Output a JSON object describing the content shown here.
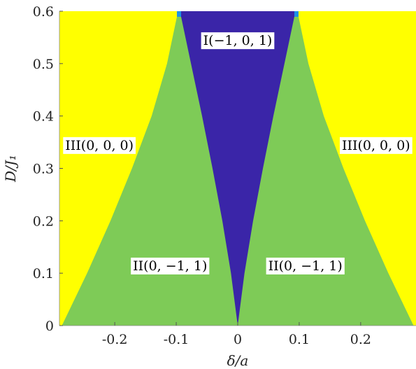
{
  "chart_data": {
    "type": "heatmap",
    "xlabel": "δ/a",
    "ylabel": "D/J₁",
    "xlim": [
      -0.29,
      0.29
    ],
    "ylim": [
      0,
      0.6
    ],
    "x_ticks": [
      {
        "value": -0.2,
        "label": "-0.2"
      },
      {
        "value": -0.1,
        "label": "-0.1"
      },
      {
        "value": 0,
        "label": "0"
      },
      {
        "value": 0.1,
        "label": "0.1"
      },
      {
        "value": 0.2,
        "label": "0.2"
      }
    ],
    "y_ticks": [
      {
        "value": 0,
        "label": "0"
      },
      {
        "value": 0.1,
        "label": "0.1"
      },
      {
        "value": 0.2,
        "label": "0.2"
      },
      {
        "value": 0.3,
        "label": "0.3"
      },
      {
        "value": 0.4,
        "label": "0.4"
      },
      {
        "value": 0.5,
        "label": "0.5"
      },
      {
        "value": 0.6,
        "label": "0.6"
      }
    ],
    "regions": [
      {
        "name": "III",
        "label": "III(0, 0, 0)",
        "color": "#ffff00"
      },
      {
        "name": "II",
        "label": "II(0, −1, 1)",
        "color": "#7ecb57"
      },
      {
        "name": "I",
        "label": "I(−1, 0, 1)",
        "color": "#3a25a8"
      }
    ],
    "boundaries": {
      "I_II": [
        {
          "D": 0.0,
          "delta": 0.0
        },
        {
          "D": 0.1,
          "delta": 0.011
        },
        {
          "D": 0.2,
          "delta": 0.025
        },
        {
          "D": 0.3,
          "delta": 0.041
        },
        {
          "D": 0.4,
          "delta": 0.058
        },
        {
          "D": 0.5,
          "delta": 0.076
        },
        {
          "D": 0.6,
          "delta": 0.094
        }
      ],
      "II_III": [
        {
          "D": 0.0,
          "delta": 0.286
        },
        {
          "D": 0.1,
          "delta": 0.245
        },
        {
          "D": 0.2,
          "delta": 0.207
        },
        {
          "D": 0.3,
          "delta": 0.172
        },
        {
          "D": 0.4,
          "delta": 0.14
        },
        {
          "D": 0.5,
          "delta": 0.115
        },
        {
          "D": 0.6,
          "delta": 0.097
        }
      ]
    },
    "annotations": [
      {
        "text": "I(−1, 0, 1)",
        "x": 0.0,
        "y": 0.545
      },
      {
        "text": "III(0, 0, 0)",
        "x": -0.225,
        "y": 0.345
      },
      {
        "text": "III(0, 0, 0)",
        "x": 0.225,
        "y": 0.345
      },
      {
        "text": "II(0, −1, 1)",
        "x": -0.11,
        "y": 0.115
      },
      {
        "text": "II(0, −1, 1)",
        "x": 0.11,
        "y": 0.115
      }
    ],
    "grid": false,
    "legend": "none"
  }
}
